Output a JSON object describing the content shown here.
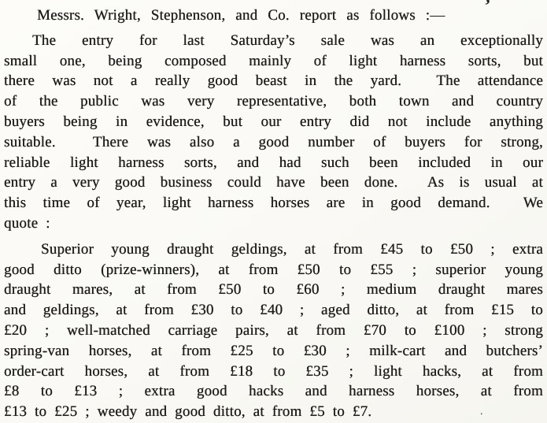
{
  "page": {
    "kind": "scanned-print-market-report",
    "paper_color": "#faf9f5",
    "ink_color": "#1e1c1a",
    "artifact_mark": "’",
    "artifact_dot": "."
  },
  "document": {
    "paragraphs": [
      {
        "name": "report-intro",
        "lines": [
          "Messrs. Wright, Stephenson, and Co. report as follows :—"
        ]
      },
      {
        "name": "market-summary",
        "lines": [
          "The entry for last Saturday’s sale was an exceptionally",
          "small one, being composed mainly of light harness sorts, but",
          "there was not a really good beast in the yard.  The attendance",
          "of the public was very representative, both town and country",
          "buyers being in evidence, but our entry did not include anything",
          "suitable.  There was also a good number of buyers for strong,",
          "reliable light harness sorts, and had such been included in our",
          "entry a very good business could have been done.  As is usual at",
          "this time of year, light harness horses are in good demand.  We",
          "quote :"
        ]
      },
      {
        "name": "price-quotes",
        "lines": [
          "Superior young draught geldings, at from £45 to £50 ; extra",
          "good ditto (prize-winners), at from £50 to £55 ; superior young",
          "draught mares, at from £50 to £60 ; medium draught mares",
          "and geldings, at from £30 to £40 ; aged ditto, at from £15 to",
          "£20 ; well-matched carriage pairs, at from £70 to £100 ; strong",
          "spring-van horses, at from £25 to £30 ; milk-cart and butchers’",
          "order-cart horses, at from £18 to £35 ; light hacks, at from",
          "£8 to £13 ; extra good hacks and harness horses, at from",
          "£13 to £25 ; weedy and good ditto, at from £5 to £7."
        ]
      }
    ]
  }
}
